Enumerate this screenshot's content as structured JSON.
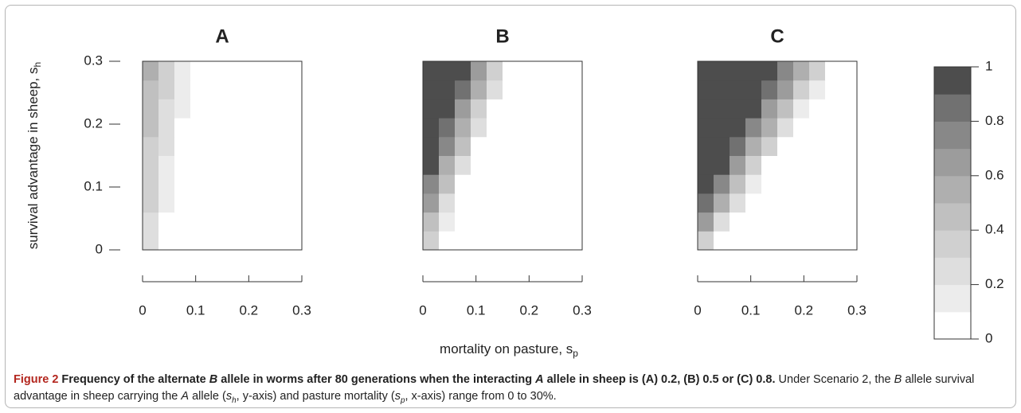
{
  "chart_data": [
    {
      "type": "heatmap",
      "title": "A",
      "ylabel": {
        "text": "survival advantage in sheep, s",
        "sub": "h"
      },
      "xbins": [
        0,
        0.03,
        0.06,
        0.09,
        0.12,
        0.15,
        0.18,
        0.21,
        0.24,
        0.27,
        0.3
      ],
      "ybins": [
        0,
        0.03,
        0.06,
        0.09,
        0.12,
        0.15,
        0.18,
        0.21,
        0.24,
        0.27,
        0.3
      ],
      "z": [
        [
          0.2,
          0,
          0,
          0,
          0,
          0,
          0,
          0,
          0,
          0
        ],
        [
          0.2,
          0,
          0,
          0,
          0,
          0,
          0,
          0,
          0,
          0
        ],
        [
          0.3,
          0.1,
          0,
          0,
          0,
          0,
          0,
          0,
          0,
          0
        ],
        [
          0.3,
          0.1,
          0,
          0,
          0,
          0,
          0,
          0,
          0,
          0
        ],
        [
          0.3,
          0.1,
          0,
          0,
          0,
          0,
          0,
          0,
          0,
          0
        ],
        [
          0.3,
          0.2,
          0,
          0,
          0,
          0,
          0,
          0,
          0,
          0
        ],
        [
          0.4,
          0.2,
          0,
          0,
          0,
          0,
          0,
          0,
          0,
          0
        ],
        [
          0.4,
          0.2,
          0.1,
          0,
          0,
          0,
          0,
          0,
          0,
          0
        ],
        [
          0.4,
          0.3,
          0.1,
          0,
          0,
          0,
          0,
          0,
          0,
          0
        ],
        [
          0.5,
          0.3,
          0.1,
          0,
          0,
          0,
          0,
          0,
          0,
          0
        ]
      ],
      "xlim": [
        0,
        0.3
      ],
      "ylim": [
        0,
        0.3
      ],
      "xticks": [
        0,
        0.1,
        0.2,
        0.3
      ],
      "yticks": [
        0,
        0.1,
        0.2,
        0.3
      ]
    },
    {
      "type": "heatmap",
      "title": "B",
      "xbins": [
        0,
        0.03,
        0.06,
        0.09,
        0.12,
        0.15,
        0.18,
        0.21,
        0.24,
        0.27,
        0.3
      ],
      "ybins": [
        0,
        0.03,
        0.06,
        0.09,
        0.12,
        0.15,
        0.18,
        0.21,
        0.24,
        0.27,
        0.3
      ],
      "z": [
        [
          0.3,
          0,
          0,
          0,
          0,
          0,
          0,
          0,
          0,
          0
        ],
        [
          0.4,
          0.1,
          0,
          0,
          0,
          0,
          0,
          0,
          0,
          0
        ],
        [
          0.6,
          0.2,
          0,
          0,
          0,
          0,
          0,
          0,
          0,
          0
        ],
        [
          0.7,
          0.4,
          0,
          0,
          0,
          0,
          0,
          0,
          0,
          0
        ],
        [
          0.9,
          0.5,
          0.2,
          0,
          0,
          0,
          0,
          0,
          0,
          0
        ],
        [
          1,
          0.7,
          0.4,
          0,
          0,
          0,
          0,
          0,
          0,
          0
        ],
        [
          1,
          0.8,
          0.5,
          0.2,
          0,
          0,
          0,
          0,
          0,
          0
        ],
        [
          1,
          0.9,
          0.6,
          0.3,
          0,
          0,
          0,
          0,
          0,
          0
        ],
        [
          1,
          1,
          0.8,
          0.5,
          0.2,
          0,
          0,
          0,
          0,
          0
        ],
        [
          1,
          1,
          0.9,
          0.6,
          0.3,
          0,
          0,
          0,
          0,
          0
        ]
      ],
      "xlim": [
        0,
        0.3
      ],
      "ylim": [
        0,
        0.3
      ],
      "xticks": [
        0,
        0.1,
        0.2,
        0.3
      ]
    },
    {
      "type": "heatmap",
      "title": "C",
      "xbins": [
        0,
        0.03,
        0.06,
        0.09,
        0.12,
        0.15,
        0.18,
        0.21,
        0.24,
        0.27,
        0.3
      ],
      "ybins": [
        0,
        0.03,
        0.06,
        0.09,
        0.12,
        0.15,
        0.18,
        0.21,
        0.24,
        0.27,
        0.3
      ],
      "z": [
        [
          0.3,
          0,
          0,
          0,
          0,
          0,
          0,
          0,
          0,
          0
        ],
        [
          0.6,
          0.2,
          0,
          0,
          0,
          0,
          0,
          0,
          0,
          0
        ],
        [
          0.8,
          0.5,
          0.2,
          0,
          0,
          0,
          0,
          0,
          0,
          0
        ],
        [
          1,
          0.7,
          0.4,
          0.1,
          0,
          0,
          0,
          0,
          0,
          0
        ],
        [
          1,
          0.9,
          0.6,
          0.3,
          0,
          0,
          0,
          0,
          0,
          0
        ],
        [
          1,
          1,
          0.8,
          0.5,
          0.3,
          0,
          0,
          0,
          0,
          0
        ],
        [
          1,
          1,
          1,
          0.7,
          0.5,
          0.2,
          0,
          0,
          0,
          0
        ],
        [
          1,
          1,
          1,
          0.9,
          0.6,
          0.4,
          0.1,
          0,
          0,
          0
        ],
        [
          1,
          1,
          1,
          1,
          0.8,
          0.6,
          0.3,
          0.1,
          0,
          0
        ],
        [
          1,
          1,
          1,
          1,
          1,
          0.7,
          0.5,
          0.3,
          0,
          0
        ]
      ],
      "xlim": [
        0,
        0.3
      ],
      "ylim": [
        0,
        0.3
      ],
      "xticks": [
        0,
        0.1,
        0.2,
        0.3
      ]
    }
  ],
  "xlabel": {
    "text": "mortality on pasture, s",
    "sub": "p"
  },
  "colorbar": {
    "breaks": [
      0,
      0.1,
      0.2,
      0.3,
      0.4,
      0.5,
      0.6,
      0.7,
      0.8,
      0.9,
      1
    ],
    "colors": [
      "#ffffff",
      "#ececec",
      "#dedede",
      "#d0d0d0",
      "#c0c0c0",
      "#afafaf",
      "#9c9c9c",
      "#888888",
      "#717171",
      "#4d4d4d"
    ],
    "ticks": [
      0,
      0.2,
      0.4,
      0.6,
      0.8,
      1
    ]
  },
  "caption": {
    "runs": [
      {
        "text": "Figure 2",
        "bold": true,
        "red": true
      },
      {
        "text": " Frequency of the alternate ",
        "bold": true
      },
      {
        "text": "B",
        "bold": true,
        "italic": true
      },
      {
        "text": " allele in worms after 80 generations when the interacting ",
        "bold": true
      },
      {
        "text": "A",
        "bold": true,
        "italic": true
      },
      {
        "text": " allele in sheep is (A) 0.2, (B) 0.5 or (C) 0.8.",
        "bold": true
      },
      {
        "text": " Under Scenario 2, the "
      },
      {
        "text": "B",
        "italic": true
      },
      {
        "text": " allele survival advantage in sheep carrying the "
      },
      {
        "text": "A",
        "italic": true
      },
      {
        "text": " allele ("
      },
      {
        "text": "s",
        "italic": true
      },
      {
        "text": "h",
        "italic": true,
        "sub": true
      },
      {
        "text": ", y-axis) and pasture mortality ("
      },
      {
        "text": "s",
        "italic": true
      },
      {
        "text": "p",
        "italic": true,
        "sub": true
      },
      {
        "text": ", x-axis) range from 0 to 30%."
      }
    ]
  }
}
